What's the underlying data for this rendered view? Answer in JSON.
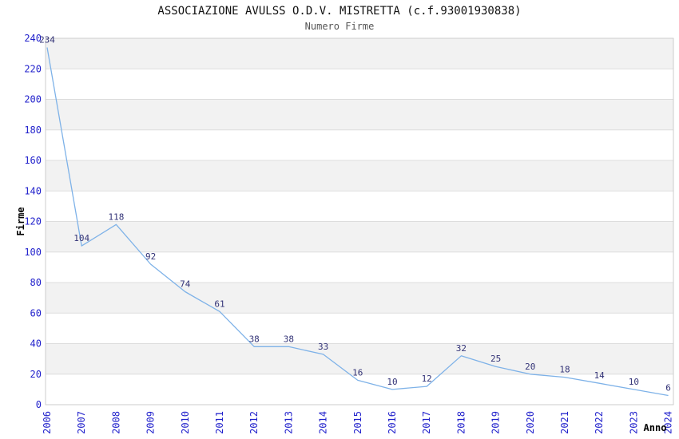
{
  "chart_data": {
    "type": "line",
    "title": "ASSOCIAZIONE AVULSS O.D.V. MISTRETTA (c.f.93001930838)",
    "subtitle": "Numero Firme",
    "xlabel": "Anno",
    "ylabel": "Firme",
    "categories": [
      "2006",
      "2007",
      "2008",
      "2009",
      "2010",
      "2011",
      "2012",
      "2013",
      "2014",
      "2015",
      "2016",
      "2017",
      "2018",
      "2019",
      "2020",
      "2021",
      "2022",
      "2023",
      "2024"
    ],
    "values": [
      234,
      104,
      118,
      92,
      74,
      61,
      38,
      38,
      33,
      16,
      10,
      12,
      32,
      25,
      20,
      18,
      14,
      10,
      6
    ],
    "ylim": [
      0,
      240
    ],
    "ytick_step": 20,
    "grid": "horizontal",
    "legend": "none",
    "data_labels": true,
    "colors": {
      "line": "#7EB2E8",
      "tick_label": "#2222CC",
      "data_label": "#333377",
      "band": "#F2F2F2",
      "gridline": "#DDDDDD",
      "border": "#CCCCCC",
      "title": "#111111",
      "subtitle": "#555555",
      "axis_title": "#000000",
      "background": "#FFFFFF"
    }
  }
}
